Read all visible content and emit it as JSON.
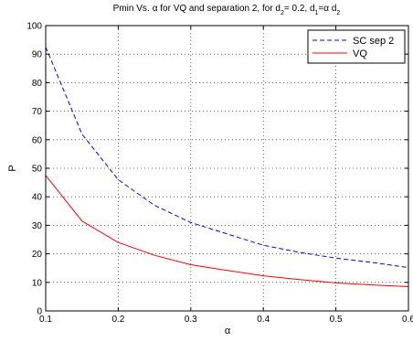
{
  "chart_data": {
    "type": "line",
    "title_parts": {
      "lead": "Pmin Vs.",
      "alpha": "α",
      "mid": " for VQ and separation 2, for d",
      "sub2a": "2",
      "eq1": "= 0.2, d",
      "sub1": "1",
      "eq2": "=α d",
      "sub2b": "2"
    },
    "xlabel": "α",
    "ylabel": "P",
    "xlim": [
      0.1,
      0.6
    ],
    "ylim": [
      0,
      100
    ],
    "xticks": [
      "0.1",
      "0.2",
      "0.3",
      "0.4",
      "0.5",
      "0.6"
    ],
    "xtick_values": [
      0.1,
      0.2,
      0.3,
      0.4,
      0.5,
      0.6
    ],
    "yticks": [
      "0",
      "10",
      "20",
      "30",
      "40",
      "50",
      "60",
      "70",
      "80",
      "90",
      "100"
    ],
    "ytick_values": [
      0,
      10,
      20,
      30,
      40,
      50,
      60,
      70,
      80,
      90,
      100
    ],
    "grid": true,
    "legend_position": "top-right",
    "x": [
      0.1,
      0.15,
      0.2,
      0.25,
      0.3,
      0.35,
      0.4,
      0.45,
      0.5,
      0.55,
      0.6
    ],
    "series": [
      {
        "name": "SC sep 2",
        "color": "#0000ff",
        "style": "dashed",
        "values": [
          92.5,
          62,
          46,
          37,
          31,
          27,
          23,
          20.5,
          18.5,
          17,
          15.2
        ]
      },
      {
        "name": "VQ",
        "color": "#ff0000",
        "style": "solid",
        "values": [
          47.5,
          31.5,
          24,
          19.5,
          16.2,
          14.2,
          12.3,
          11,
          9.8,
          9.1,
          8.5
        ]
      }
    ]
  }
}
